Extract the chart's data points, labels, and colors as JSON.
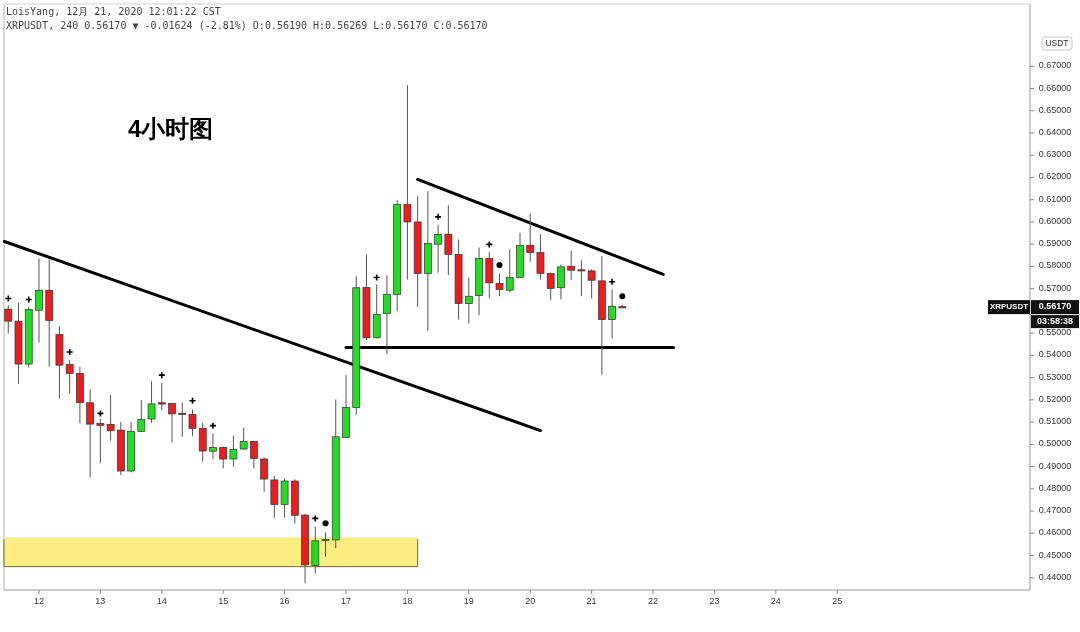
{
  "chart_data": {
    "type": "candlestick",
    "title": "4小时图",
    "ylabel": "USDT",
    "annotations": [
      "LoisYang, 12月 21, 2020 12:01:22 CST",
      "XRPUSDT, 240 0.56170 ▼ -0.01624 (-2.81%) O:0.56190 H:0.56269 L:0.56170 C:0.56170",
      "XRPUSDT",
      "0.56170",
      "03:58:38"
    ],
    "x": [
      "2020-12-11T12:00",
      "2020-12-11T16:00",
      "2020-12-11T20:00",
      "2020-12-12T00:00",
      "2020-12-12T04:00",
      "2020-12-12T08:00",
      "2020-12-12T12:00",
      "2020-12-12T16:00",
      "2020-12-12T20:00",
      "2020-12-13T00:00",
      "2020-12-13T04:00",
      "2020-12-13T08:00",
      "2020-12-13T12:00",
      "2020-12-13T16:00",
      "2020-12-13T20:00",
      "2020-12-14T00:00",
      "2020-12-14T04:00",
      "2020-12-14T08:00",
      "2020-12-14T12:00",
      "2020-12-14T16:00",
      "2020-12-14T20:00",
      "2020-12-15T00:00",
      "2020-12-15T04:00",
      "2020-12-15T08:00",
      "2020-12-15T12:00",
      "2020-12-15T16:00",
      "2020-12-15T20:00",
      "2020-12-16T00:00",
      "2020-12-16T04:00",
      "2020-12-16T08:00",
      "2020-12-16T12:00",
      "2020-12-16T16:00",
      "2020-12-16T20:00",
      "2020-12-17T00:00",
      "2020-12-17T04:00",
      "2020-12-17T08:00",
      "2020-12-17T12:00",
      "2020-12-17T16:00",
      "2020-12-17T20:00",
      "2020-12-18T00:00",
      "2020-12-18T04:00",
      "2020-12-18T08:00",
      "2020-12-18T12:00",
      "2020-12-18T16:00",
      "2020-12-18T20:00",
      "2020-12-19T00:00",
      "2020-12-19T04:00",
      "2020-12-19T08:00",
      "2020-12-19T12:00",
      "2020-12-19T16:00",
      "2020-12-19T20:00",
      "2020-12-20T00:00",
      "2020-12-20T04:00",
      "2020-12-20T08:00",
      "2020-12-20T12:00",
      "2020-12-20T16:00",
      "2020-12-20T20:00",
      "2020-12-21T00:00",
      "2020-12-21T04:00",
      "2020-12-21T08:00",
      "2020-12-21T12:00"
    ],
    "ohlc": [
      [
        0.5608,
        0.5626,
        0.5499,
        0.5554
      ],
      [
        0.5554,
        0.5636,
        0.5271,
        0.5361
      ],
      [
        0.5361,
        0.5618,
        0.5346,
        0.5606
      ],
      [
        0.5603,
        0.5836,
        0.5458,
        0.5693
      ],
      [
        0.5693,
        0.5831,
        0.5349,
        0.5557
      ],
      [
        0.5494,
        0.5531,
        0.5206,
        0.5356
      ],
      [
        0.5359,
        0.5379,
        0.5229,
        0.5319
      ],
      [
        0.5319,
        0.5349,
        0.5094,
        0.5187
      ],
      [
        0.5187,
        0.5247,
        0.4851,
        0.5091
      ],
      [
        0.5094,
        0.5116,
        0.4914,
        0.5085
      ],
      [
        0.509,
        0.5221,
        0.5016,
        0.5061
      ],
      [
        0.5064,
        0.5101,
        0.4862,
        0.488
      ],
      [
        0.488,
        0.5101,
        0.4874,
        0.5058
      ],
      [
        0.5058,
        0.5199,
        0.5055,
        0.5112
      ],
      [
        0.5114,
        0.5284,
        0.5097,
        0.5182
      ],
      [
        0.5187,
        0.5277,
        0.5154,
        0.5181
      ],
      [
        0.5184,
        0.5187,
        0.5009,
        0.5137
      ],
      [
        0.514,
        0.5188,
        0.5034,
        0.5134
      ],
      [
        0.5135,
        0.5157,
        0.5037,
        0.5072
      ],
      [
        0.5072,
        0.5097,
        0.4922,
        0.497
      ],
      [
        0.4969,
        0.5049,
        0.4933,
        0.4986
      ],
      [
        0.4986,
        0.499,
        0.4892,
        0.4934
      ],
      [
        0.4934,
        0.504,
        0.49,
        0.4977
      ],
      [
        0.4979,
        0.5075,
        0.4975,
        0.5013
      ],
      [
        0.5013,
        0.5015,
        0.4892,
        0.4936
      ],
      [
        0.4934,
        0.4942,
        0.4787,
        0.4844
      ],
      [
        0.484,
        0.4858,
        0.467,
        0.473
      ],
      [
        0.473,
        0.4847,
        0.467,
        0.4835
      ],
      [
        0.4835,
        0.4843,
        0.4645,
        0.4681
      ],
      [
        0.4682,
        0.4687,
        0.4375,
        0.4458
      ],
      [
        0.4455,
        0.463,
        0.442,
        0.4566
      ],
      [
        0.4568,
        0.4604,
        0.4495,
        0.4573
      ],
      [
        0.457,
        0.5202,
        0.4533,
        0.5034
      ],
      [
        0.5031,
        0.5311,
        0.503,
        0.5166
      ],
      [
        0.5165,
        0.5756,
        0.5132,
        0.5704
      ],
      [
        0.5705,
        0.5854,
        0.5469,
        0.5479
      ],
      [
        0.5479,
        0.5719,
        0.5476,
        0.5584
      ],
      [
        0.5588,
        0.5761,
        0.5406,
        0.5674
      ],
      [
        0.5674,
        0.6098,
        0.5599,
        0.6078
      ],
      [
        0.6078,
        0.6615,
        0.5741,
        0.6
      ],
      [
        0.6,
        0.6117,
        0.5618,
        0.5768
      ],
      [
        0.5768,
        0.6138,
        0.551,
        0.5903
      ],
      [
        0.59,
        0.5988,
        0.5771,
        0.5944
      ],
      [
        0.5945,
        0.6075,
        0.5761,
        0.5854
      ],
      [
        0.5854,
        0.5921,
        0.5561,
        0.5633
      ],
      [
        0.5633,
        0.575,
        0.5543,
        0.5666
      ],
      [
        0.5669,
        0.5885,
        0.5581,
        0.5836
      ],
      [
        0.5836,
        0.5866,
        0.5656,
        0.5726
      ],
      [
        0.5723,
        0.5768,
        0.5666,
        0.5696
      ],
      [
        0.5693,
        0.5876,
        0.5686,
        0.575
      ],
      [
        0.575,
        0.5951,
        0.575,
        0.5895
      ],
      [
        0.5895,
        0.6038,
        0.5821,
        0.5862
      ],
      [
        0.5862,
        0.5945,
        0.5741,
        0.5768
      ],
      [
        0.5768,
        0.5771,
        0.5648,
        0.5701
      ],
      [
        0.5704,
        0.5809,
        0.5651,
        0.5798
      ],
      [
        0.5801,
        0.587,
        0.5738,
        0.5783
      ],
      [
        0.5785,
        0.5828,
        0.5666,
        0.5782
      ],
      [
        0.578,
        0.5786,
        0.5656,
        0.5738
      ],
      [
        0.5735,
        0.5846,
        0.5311,
        0.5561
      ],
      [
        0.5561,
        0.5696,
        0.5476,
        0.5621
      ],
      [
        0.5619,
        0.56269,
        0.5617,
        0.5617
      ]
    ],
    "colors": [
      "#ee1c1c",
      "#ee1c1c",
      "#22dd22",
      "#22dd22",
      "#ee1c1c",
      "#ee1c1c",
      "#ee1c1c",
      "#ee1c1c",
      "#ee1c1c",
      "#ee1c1c",
      "#ee1c1c",
      "#ee1c1c",
      "#22dd22",
      "#22dd22",
      "#22dd22",
      "#ee1c1c",
      "#ee1c1c",
      "#ee1c1c",
      "#ee1c1c",
      "#ee1c1c",
      "#22dd22",
      "#ee1c1c",
      "#22dd22",
      "#22dd22",
      "#ee1c1c",
      "#ee1c1c",
      "#ee1c1c",
      "#22dd22",
      "#ee1c1c",
      "#ee1c1c",
      "#22dd22",
      "#22dd22",
      "#22dd22",
      "#22dd22",
      "#22dd22",
      "#ee1c1c",
      "#22dd22",
      "#22dd22",
      "#22dd22",
      "#ee1c1c",
      "#ee1c1c",
      "#22dd22",
      "#22dd22",
      "#ee1c1c",
      "#ee1c1c",
      "#22dd22",
      "#22dd22",
      "#ee1c1c",
      "#ee1c1c",
      "#22dd22",
      "#22dd22",
      "#ee1c1c",
      "#ee1c1c",
      "#ee1c1c",
      "#22dd22",
      "#ee1c1c",
      "#ee1c1c",
      "#ee1c1c",
      "#ee1c1c",
      "#22dd22",
      "#ee1c1c"
    ],
    "series": [
      {
        "type": "line",
        "x": [
          "2020-12-11T10:30",
          "2020-12-20T04:00"
        ],
        "values": [
          0.5912,
          0.5062
        ],
        "color": "#000000"
      },
      {
        "type": "line",
        "x": [
          "2020-12-18T04:00",
          "2020-12-22T04:00"
        ],
        "values": [
          0.6191,
          0.5764
        ],
        "color": "#000000"
      },
      {
        "type": "line",
        "x": [
          "2020-12-17T00:00",
          "2020-12-22T08:00"
        ],
        "values": [
          0.5435,
          0.5435
        ],
        "color": "#000000"
      },
      {
        "type": "line",
        "x": [
          "2020-12-11T10:20",
          "2020-12-18T04:00"
        ],
        "values": [
          0.4577,
          0.4577
        ],
        "upper": [
          0.4577,
          0.4577
        ],
        "lower": [
          0.445,
          0.445
        ],
        "color": "#fcee82"
      },
      {
        "type": "scatter",
        "marker": "cross",
        "color": "#000000",
        "x": [
          "2020-12-11T12:00",
          "2020-12-11T20:00",
          "2020-12-12T12:00",
          "2020-12-13T00:00",
          "2020-12-14T00:00",
          "2020-12-14T12:00",
          "2020-12-14T20:00",
          "2020-12-16T12:00",
          "2020-12-17T12:00",
          "2020-12-18T12:00",
          "2020-12-19T08:00",
          "2020-12-21T08:00"
        ],
        "values": [
          0.5656,
          0.5651,
          0.5415,
          0.5139,
          0.5311,
          0.5196,
          0.5084,
          0.4667,
          0.575,
          0.6023,
          0.5899,
          0.5731
        ]
      },
      {
        "type": "scatter",
        "marker": "circle",
        "color": "#000000",
        "x": [
          "2020-12-16T16:00",
          "2020-12-19T12:00",
          "2020-12-21T12:00"
        ],
        "values": [
          0.4645,
          0.5806,
          0.5666
        ]
      }
    ],
    "xlim": [
      "2020-12-11T10:20",
      "2020-12-28T03:20"
    ],
    "xticks": [
      {
        "value": "2020-12-12",
        "label": "12"
      },
      {
        "value": "2020-12-13",
        "label": "13"
      },
      {
        "value": "2020-12-14",
        "label": "14"
      },
      {
        "value": "2020-12-15",
        "label": "15"
      },
      {
        "value": "2020-12-16",
        "label": "16"
      },
      {
        "value": "2020-12-17",
        "label": "17"
      },
      {
        "value": "2020-12-18",
        "label": "18"
      },
      {
        "value": "2020-12-19",
        "label": "19"
      },
      {
        "value": "2020-12-20",
        "label": "20"
      },
      {
        "value": "2020-12-21",
        "label": "21"
      },
      {
        "value": "2020-12-22",
        "label": "22"
      },
      {
        "value": "2020-12-23",
        "label": "23"
      },
      {
        "value": "2020-12-24",
        "label": "24"
      },
      {
        "value": "2020-12-25",
        "label": "25"
      }
    ],
    "ylim": [
      0.4345,
      0.698
    ],
    "yticks": [
      {
        "value": 0.44,
        "label": "0.44000"
      },
      {
        "value": 0.45,
        "label": "0.45000"
      },
      {
        "value": 0.46,
        "label": "0.46000"
      },
      {
        "value": 0.47,
        "label": "0.47000"
      },
      {
        "value": 0.48,
        "label": "0.48000"
      },
      {
        "value": 0.49,
        "label": "0.49000"
      },
      {
        "value": 0.5,
        "label": "0.50000"
      },
      {
        "value": 0.51,
        "label": "0.51000"
      },
      {
        "value": 0.52,
        "label": "0.52000"
      },
      {
        "value": 0.53,
        "label": "0.53000"
      },
      {
        "value": 0.54,
        "label": "0.54000"
      },
      {
        "value": 0.55,
        "label": "0.55000"
      },
      {
        "value": 0.57,
        "label": "0.57000"
      },
      {
        "value": 0.58,
        "label": "0.58000"
      },
      {
        "value": 0.59,
        "label": "0.59000"
      },
      {
        "value": 0.6,
        "label": "0.60000"
      },
      {
        "value": 0.61,
        "label": "0.61000"
      },
      {
        "value": 0.62,
        "label": "0.62000"
      },
      {
        "value": 0.63,
        "label": "0.63000"
      },
      {
        "value": 0.64,
        "label": "0.64000"
      },
      {
        "value": 0.65,
        "label": "0.65000"
      },
      {
        "value": 0.66,
        "label": "0.66000"
      },
      {
        "value": 0.67,
        "label": "0.67000"
      }
    ]
  }
}
